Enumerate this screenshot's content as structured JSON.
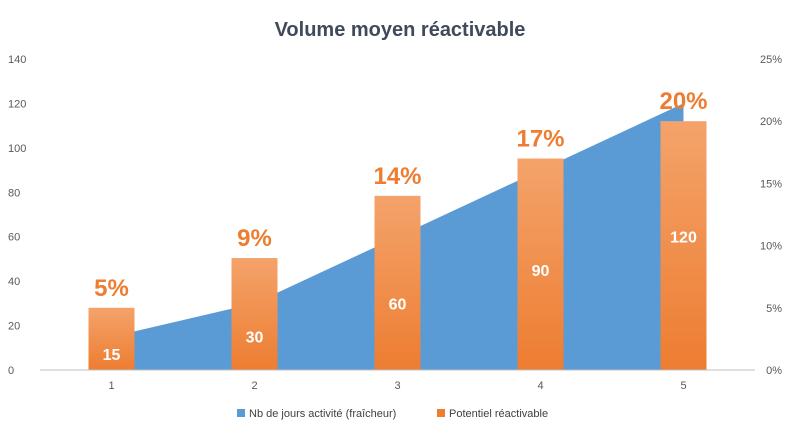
{
  "chart_data": {
    "type": "bar",
    "title": "Volume moyen réactivable",
    "categories": [
      "1",
      "2",
      "3",
      "4",
      "5"
    ],
    "series": [
      {
        "name": "Nb de jours activité (fraîcheur)",
        "type": "area",
        "axis": "left",
        "color": "#5b9bd5",
        "values": [
          15,
          30,
          60,
          90,
          120
        ]
      },
      {
        "name": "Potentiel réactivable",
        "type": "bar",
        "axis": "right",
        "color": "#ed7d31",
        "values": [
          0.05,
          0.09,
          0.14,
          0.17,
          0.2
        ],
        "labels": [
          "5%",
          "9%",
          "14%",
          "17%",
          "20%"
        ]
      }
    ],
    "bar_inner_labels": [
      "15",
      "30",
      "60",
      "90",
      "120"
    ],
    "left_axis": {
      "ylim": [
        0,
        140
      ],
      "ticks": [
        "0",
        "20",
        "40",
        "60",
        "80",
        "100",
        "120",
        "140"
      ]
    },
    "right_axis": {
      "ylim": [
        0,
        0.25
      ],
      "ticks": [
        "0%",
        "5%",
        "10%",
        "15%",
        "20%",
        "25%"
      ]
    },
    "grid": false,
    "legend_position": "bottom"
  }
}
